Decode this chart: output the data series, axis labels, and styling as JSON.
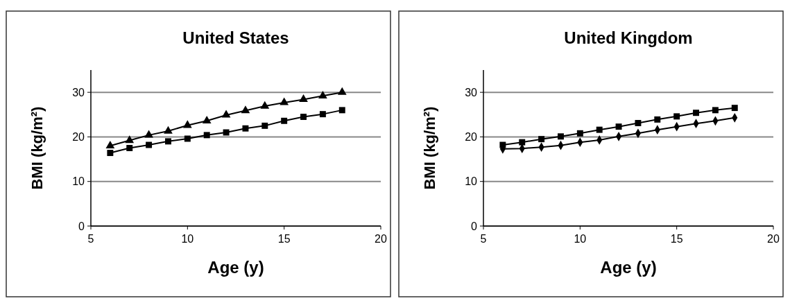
{
  "chart_data": [
    {
      "type": "line",
      "title": "United States",
      "xlabel": "Age (y)",
      "ylabel": "BMI (kg/m²)",
      "x": [
        6,
        7,
        8,
        9,
        10,
        11,
        12,
        13,
        14,
        15,
        16,
        17,
        18
      ],
      "xlim": [
        5,
        20
      ],
      "xticks": [
        5,
        10,
        15,
        20
      ],
      "ylim": [
        0,
        35
      ],
      "yticks": [
        0,
        10,
        20,
        30
      ],
      "grid": "y",
      "series": [
        {
          "color": "#000000",
          "marker": "triangle",
          "values": [
            18.0,
            19.2,
            20.4,
            21.3,
            22.6,
            23.6,
            24.9,
            25.9,
            26.9,
            27.7,
            28.4,
            29.2,
            30.0
          ]
        },
        {
          "color": "#000000",
          "marker": "square",
          "values": [
            16.4,
            17.5,
            18.2,
            19.0,
            19.6,
            20.4,
            21.0,
            21.9,
            22.5,
            23.6,
            24.5,
            25.1,
            26.0
          ]
        }
      ]
    },
    {
      "type": "line",
      "title": "United Kingdom",
      "xlabel": "Age (y)",
      "ylabel": "BMI (kg/m²)",
      "x": [
        6,
        7,
        8,
        9,
        10,
        11,
        12,
        13,
        14,
        15,
        16,
        17,
        18
      ],
      "xlim": [
        5,
        20
      ],
      "xticks": [
        5,
        10,
        15,
        20
      ],
      "ylim": [
        0,
        35
      ],
      "yticks": [
        0,
        10,
        20,
        30
      ],
      "grid": "y",
      "series": [
        {
          "color": "#000000",
          "marker": "square",
          "values": [
            18.2,
            18.8,
            19.5,
            20.1,
            20.8,
            21.6,
            22.3,
            23.1,
            23.9,
            24.6,
            25.4,
            26.0,
            26.5
          ]
        },
        {
          "color": "#000000",
          "marker": "diamond",
          "values": [
            17.3,
            17.4,
            17.7,
            18.1,
            18.8,
            19.3,
            20.1,
            20.8,
            21.6,
            22.3,
            23.0,
            23.6,
            24.3
          ]
        }
      ]
    }
  ]
}
